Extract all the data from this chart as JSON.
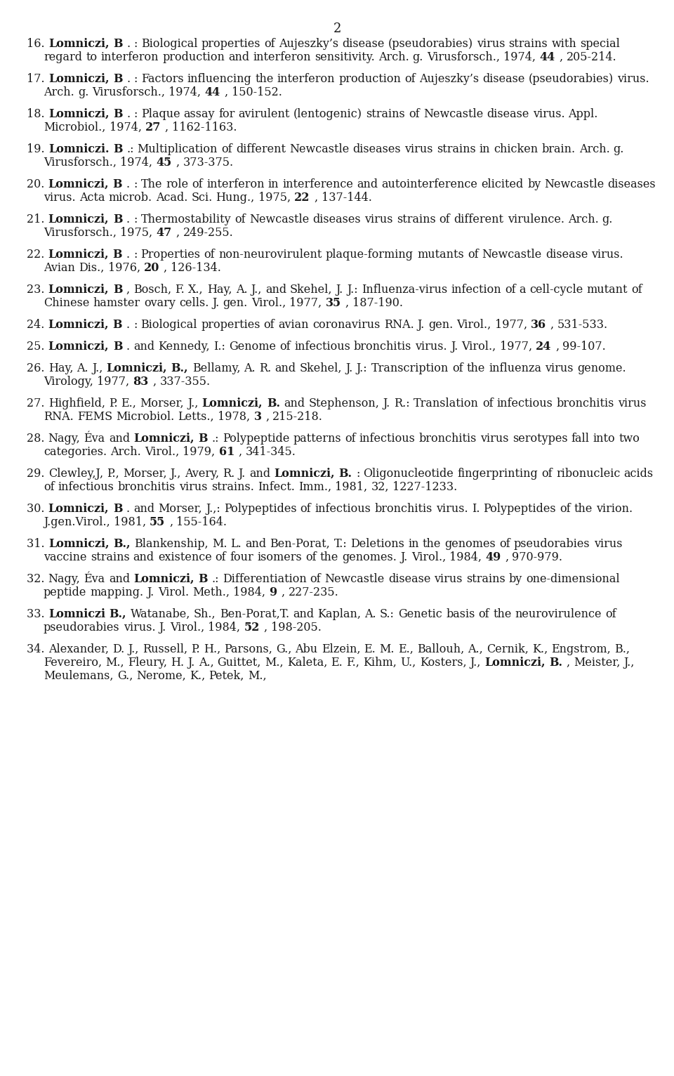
{
  "page_number": "2",
  "background_color": "#ffffff",
  "text_color": "#1a1a1a",
  "font_size": 11.5,
  "references": [
    {
      "number": "16",
      "bold_part": "Lomniczi, B.",
      "rest": ".: Biological properties of Aujeszky’s disease (pseudorabies) virus strains with special regard to interferon production and interferon sensitivity. Arch. g. Virusforsch., 1974, •44•, 205-214."
    },
    {
      "number": "17",
      "bold_part": "Lomniczi, B.",
      "rest": ".: Factors influencing the interferon production of Aujeszky’s disease (pseudorabies) virus. Arch. g. Virusforsch., 1974, •44•, 150-152."
    },
    {
      "number": "18",
      "bold_part": "Lomniczi, B.",
      "rest": ".: Plaque assay for avirulent (lentogenic) strains of Newcastle disease virus. Appl. Microbiol., 1974, •27•, 1162-1163."
    },
    {
      "number": "19",
      "bold_part": "Lomniczi. B.",
      "rest": ": Multiplication of different Newcastle diseases virus strains in chicken brain. Arch. g. Virusforsch., 1974, •45•, 373-375."
    },
    {
      "number": "20",
      "bold_part": "Lomniczi, B.",
      "rest": ".: The role of interferon in interference and autointerference elicited by Newcastle diseases virus. Acta microb. Acad. Sci. Hung., 1975, •22•, 137-144."
    },
    {
      "number": "21",
      "bold_part": "Lomniczi, B.",
      "rest": ".: Thermostability of Newcastle diseases virus strains of different virulence. Arch. g. Virusforsch., 1975, •47•, 249-255."
    },
    {
      "number": "22",
      "bold_part": "Lomniczi, B.",
      "rest": ".: Properties of non-neurovirulent plaque-forming mutants of Newcastle disease virus. Avian Dis., 1976, •20•, 126-134."
    },
    {
      "number": "23",
      "bold_part": "Lomniczi, B.",
      "rest": ", Bosch, F. X., Hay, A. J., and Skehel, J. J.: Influenza-virus infection of a cell-cycle mutant of Chinese hamster ovary cells. J. gen. Virol., 1977, •35•, 187-190."
    },
    {
      "number": "24",
      "bold_part": "Lomniczi, B.",
      "rest": " : Biological properties of avian coronavirus RNA. J. gen. Virol., 1977, •36•, 531-533."
    },
    {
      "number": "25",
      "bold_part": "Lomniczi, B.",
      "rest": " and Kennedy, I.: Genome of infectious bronchitis virus. J. Virol., 1977, •24•, 99-107."
    },
    {
      "number": "26",
      "bold_part": "Lomniczi, B.,",
      "rest_prefix": "Hay, A. J., ",
      "rest": " Bellamy, A. R. and Skehel, J. J.: Transcription of the influenza virus genome. Virology, 1977, •83•, 337-355.",
      "prefix": "Hay, A. J., "
    },
    {
      "number": "27",
      "bold_part": "Lomniczi, B.",
      "rest": " and Stephenson, J. R.: Translation of infectious bronchitis virus RNA. FEMS Microbiol. Letts., 1978, •3•, 215-218.",
      "prefix": "Highfield, P. E., Morser, J., "
    },
    {
      "number": "28",
      "bold_part": "Lomniczi, B.",
      "rest": ".: Polypeptide patterns of infectious bronchitis virus serotypes fall into two categories. Arch. Virol., 1979, •61•, 341-345.",
      "prefix": "Nagy, Éva and "
    },
    {
      "number": "29",
      "bold_part": "Lomniczi, B.",
      "rest": ".: Oligonucleotide fingerprinting of ribonucleic acids of infectious bronchitis virus strains. Infect. Imm., 1981, 32, 1227-1233.",
      "prefix": "Clewley,J, P., Morser, J., Avery, R. J. and "
    },
    {
      "number": "30",
      "bold_part": "Lomniczi, B",
      "rest": ". and Morser, J.,: Polypeptides of infectious bronchitis virus.  I. Polypeptides of the virion. J.gen.Virol., 1981, •55•, 155-164."
    },
    {
      "number": "31",
      "bold_part": "Lomniczi, B.,",
      "rest": " Blankenship, M. L. and Ben-Porat, T.: Deletions in the genomes of pseudorabies virus vaccine strains and existence of four isomers of the genomes. J. Virol., 1984, •49•, 970-979."
    },
    {
      "number": "32",
      "bold_part": "Lomniczi, B.",
      "rest": ".: Differentiation of Newcastle disease virus strains by one-dimensional peptide mapping. J. Virol. Meth., 1984, •9•, 227-235.",
      "prefix": "Nagy, Éva and "
    },
    {
      "number": "33",
      "bold_part": "Lomniczi B.,",
      "rest": " Watanabe, Sh., Ben-Porat,T. and Kaplan, A. S.: Genetic basis of the neurovirulence of pseudorabies virus. J. Virol., 1984, ∢52•, 198-205."
    },
    {
      "number": "34",
      "bold_part": "Lomniczi, B.",
      "rest": ", Meister, J., Meulemans, G., Nerome, K., Petek, M.,",
      "prefix": "Alexander, D. J., Russell, P. H., Parsons, G., Abu Elzein, E. M. E., Ballouh, A., Cernik, K., Engstrom, B., Fevereiro, M., Fleury, H. J. A., Guittet, M., Kaleta, E. F., Kihm, U., Kosters, J., "
    }
  ]
}
